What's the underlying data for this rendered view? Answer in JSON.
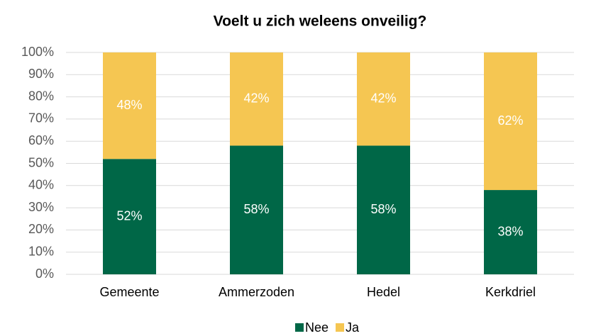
{
  "chart_data": {
    "type": "stacked_bar",
    "title": "Voelt u zich weleens onveilig?",
    "categories": [
      "Gemeente",
      "Ammerzoden",
      "Hedel",
      "Kerkdriel"
    ],
    "series": [
      {
        "name": "Nee",
        "color": "#006747",
        "values": [
          52,
          58,
          58,
          38
        ],
        "value_labels": [
          "52%",
          "58%",
          "58%",
          "38%"
        ]
      },
      {
        "name": "Ja",
        "color": "#f5c652",
        "values": [
          48,
          42,
          42,
          62
        ],
        "value_labels": [
          "48%",
          "42%",
          "42%",
          "62%"
        ]
      }
    ],
    "ylim": [
      0,
      100
    ],
    "yticks": [
      {
        "value": 0,
        "label": "0%"
      },
      {
        "value": 10,
        "label": "10%"
      },
      {
        "value": 20,
        "label": "20%"
      },
      {
        "value": 30,
        "label": "30%"
      },
      {
        "value": 40,
        "label": "40%"
      },
      {
        "value": 50,
        "label": "50%"
      },
      {
        "value": 60,
        "label": "60%"
      },
      {
        "value": 70,
        "label": "70%"
      },
      {
        "value": 80,
        "label": "80%"
      },
      {
        "value": 90,
        "label": "90%"
      },
      {
        "value": 100,
        "label": "100%"
      }
    ],
    "grid": true,
    "legend": "bottom"
  }
}
